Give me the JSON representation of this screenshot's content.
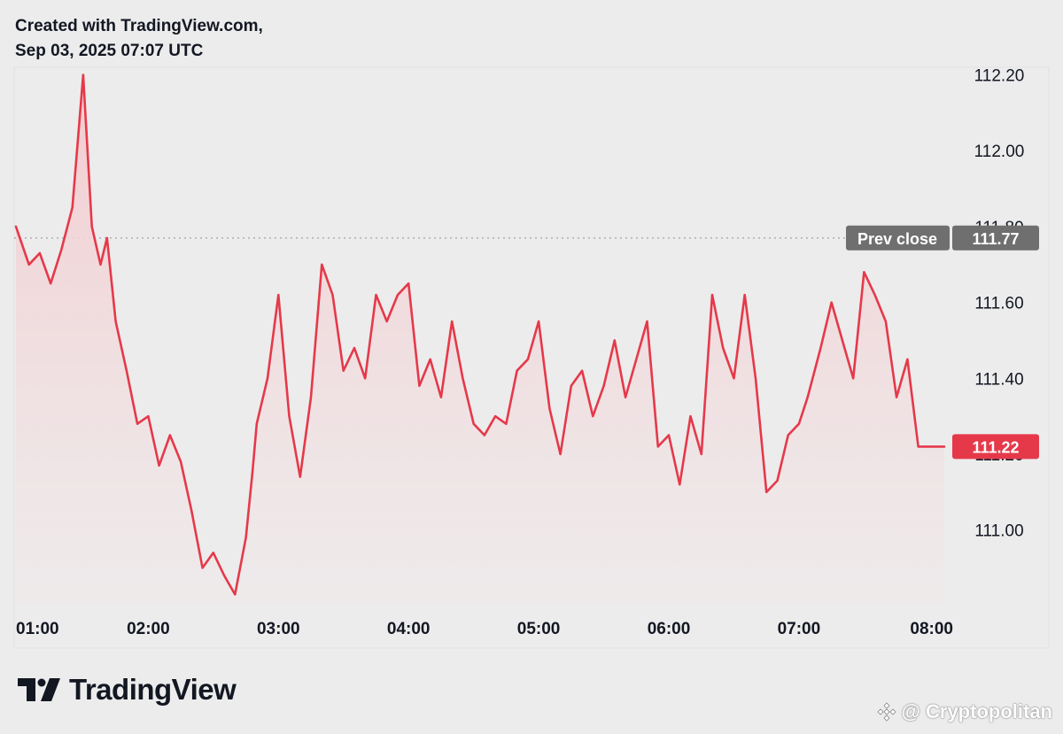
{
  "header": {
    "line1": "Created with TradingView.com,",
    "line2": "Sep 03, 2025 07:07 UTC"
  },
  "brand": {
    "name": "TradingView",
    "logo_icon": "tradingview-logo-icon"
  },
  "watermark": {
    "text": "@ Cryptopolitan",
    "icon": "binance-diamond-icon"
  },
  "colors": {
    "line": "#e5394a",
    "area_top": "#f4c9cd",
    "area_bottom": "#f0e8e9",
    "background": "#ececec",
    "prev_close_badge": "#6f6f6f",
    "last_price_badge": "#e5394a",
    "axis_text": "#131722"
  },
  "chart_data": {
    "type": "area",
    "x_ticks": [
      "01:00",
      "02:00",
      "03:00",
      "04:00",
      "05:00",
      "06:00",
      "07:00",
      "08:00"
    ],
    "y_ticks": [
      "112.20",
      "112.00",
      "111.80",
      "111.60",
      "111.40",
      "111.20",
      "111.00"
    ],
    "ylim": [
      110.81,
      112.22
    ],
    "grid": false,
    "prev_close": {
      "label": "Prev close",
      "value": "111.77",
      "numeric": 111.77
    },
    "last_price": {
      "value": "111.22",
      "numeric": 111.22
    },
    "series": [
      {
        "x": [
          "00:59",
          "01:05",
          "01:10",
          "01:15",
          "01:20",
          "01:25",
          "01:30",
          "01:34",
          "01:38",
          "01:41",
          "01:45",
          "01:50",
          "01:55",
          "02:00",
          "02:05",
          "02:10",
          "02:15",
          "02:20",
          "02:25",
          "02:30",
          "02:35",
          "02:40",
          "02:45",
          "02:48",
          "02:50",
          "02:55",
          "03:00",
          "03:05",
          "03:10",
          "03:15",
          "03:20",
          "03:25",
          "03:30",
          "03:35",
          "03:40",
          "03:45",
          "03:50",
          "03:55",
          "04:00",
          "04:05",
          "04:10",
          "04:15",
          "04:20",
          "04:25",
          "04:30",
          "04:35",
          "04:40",
          "04:45",
          "04:50",
          "04:55",
          "05:00",
          "05:05",
          "05:10",
          "05:15",
          "05:20",
          "05:25",
          "05:30",
          "05:35",
          "05:40",
          "05:45",
          "05:50",
          "05:55",
          "06:00",
          "06:05",
          "06:10",
          "06:15",
          "06:20",
          "06:25",
          "06:30",
          "06:35",
          "06:40",
          "06:45",
          "06:50",
          "06:55",
          "07:00",
          "07:04",
          "07:10",
          "07:15",
          "07:20",
          "07:25",
          "07:30",
          "07:35",
          "07:40",
          "07:45",
          "07:50",
          "07:55",
          "08:00",
          "08:03",
          "08:07"
        ],
        "values": [
          111.8,
          111.7,
          111.73,
          111.65,
          111.74,
          111.85,
          112.2,
          111.8,
          111.7,
          111.77,
          111.55,
          111.42,
          111.28,
          111.3,
          111.17,
          111.25,
          111.18,
          111.05,
          110.9,
          110.94,
          110.88,
          110.83,
          110.98,
          111.15,
          111.28,
          111.4,
          111.62,
          111.3,
          111.14,
          111.35,
          111.7,
          111.62,
          111.42,
          111.48,
          111.4,
          111.62,
          111.55,
          111.62,
          111.65,
          111.38,
          111.45,
          111.35,
          111.55,
          111.4,
          111.28,
          111.25,
          111.3,
          111.28,
          111.42,
          111.45,
          111.55,
          111.32,
          111.2,
          111.38,
          111.42,
          111.3,
          111.38,
          111.5,
          111.35,
          111.45,
          111.55,
          111.22,
          111.25,
          111.12,
          111.3,
          111.2,
          111.62,
          111.48,
          111.4,
          111.62,
          111.4,
          111.1,
          111.13,
          111.25,
          111.28,
          111.35,
          111.48,
          111.6,
          111.5,
          111.4,
          111.68,
          111.62,
          111.55,
          111.35,
          111.45,
          111.22,
          111.22,
          111.22,
          111.22
        ],
        "name": ""
      }
    ]
  }
}
